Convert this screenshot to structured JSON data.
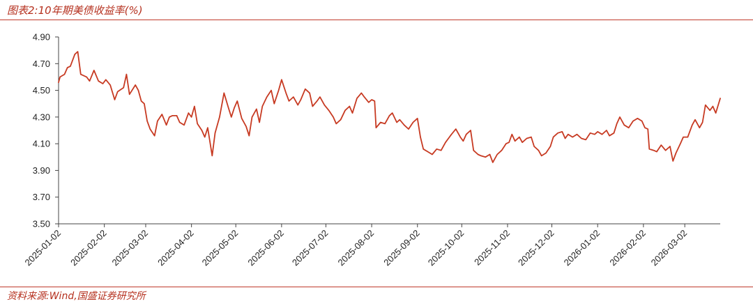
{
  "title": "图表2:10年期美债收益率(%)",
  "source": "资料来源:Wind,国盛证券研究所",
  "colors": {
    "line": "#c73a22",
    "accent": "#b5301e",
    "axis": "#444444"
  },
  "chart_data": {
    "type": "line",
    "title": "图表2:10年期美债收益率(%)",
    "xlabel": "",
    "ylabel": "",
    "ylim": [
      3.5,
      4.9
    ],
    "yticks": [
      "4.90",
      "4.70",
      "4.50",
      "4.30",
      "4.10",
      "3.90",
      "3.70",
      "3.50"
    ],
    "xticks": [
      "2025-01-02",
      "2025-02-02",
      "2025-03-02",
      "2025-04-02",
      "2025-05-02",
      "2025-06-02",
      "2025-07-02",
      "2025-08-02",
      "2025-09-02",
      "2025-10-02",
      "2025-11-02",
      "2025-12-02",
      "2026-01-02",
      "2026-02-02",
      "2026-03-02"
    ],
    "grid": false,
    "legend": "none",
    "series": [
      {
        "points": [
          [
            "2025-01-02",
            4.56
          ],
          [
            "2025-01-03",
            4.6
          ],
          [
            "2025-01-06",
            4.62
          ],
          [
            "2025-01-08",
            4.67
          ],
          [
            "2025-01-10",
            4.68
          ],
          [
            "2025-01-13",
            4.77
          ],
          [
            "2025-01-15",
            4.79
          ],
          [
            "2025-01-17",
            4.62
          ],
          [
            "2025-01-21",
            4.6
          ],
          [
            "2025-01-23",
            4.57
          ],
          [
            "2025-01-26",
            4.65
          ],
          [
            "2025-01-29",
            4.57
          ],
          [
            "2025-02-01",
            4.55
          ],
          [
            "2025-02-03",
            4.58
          ],
          [
            "2025-02-06",
            4.54
          ],
          [
            "2025-02-09",
            4.43
          ],
          [
            "2025-02-11",
            4.49
          ],
          [
            "2025-02-15",
            4.52
          ],
          [
            "2025-02-17",
            4.62
          ],
          [
            "2025-02-19",
            4.47
          ],
          [
            "2025-02-23",
            4.54
          ],
          [
            "2025-02-25",
            4.5
          ],
          [
            "2025-02-27",
            4.42
          ],
          [
            "2025-03-01",
            4.4
          ],
          [
            "2025-03-03",
            4.27
          ],
          [
            "2025-03-05",
            4.21
          ],
          [
            "2025-03-08",
            4.16
          ],
          [
            "2025-03-10",
            4.27
          ],
          [
            "2025-03-13",
            4.32
          ],
          [
            "2025-03-16",
            4.24
          ],
          [
            "2025-03-18",
            4.3
          ],
          [
            "2025-03-20",
            4.31
          ],
          [
            "2025-03-23",
            4.31
          ],
          [
            "2025-03-25",
            4.26
          ],
          [
            "2025-03-28",
            4.24
          ],
          [
            "2025-03-31",
            4.33
          ],
          [
            "2025-04-02",
            4.3
          ],
          [
            "2025-04-04",
            4.38
          ],
          [
            "2025-04-06",
            4.25
          ],
          [
            "2025-04-09",
            4.2
          ],
          [
            "2025-04-11",
            4.15
          ],
          [
            "2025-04-13",
            4.22
          ],
          [
            "2025-04-16",
            4.01
          ],
          [
            "2025-04-18",
            4.18
          ],
          [
            "2025-04-21",
            4.3
          ],
          [
            "2025-04-24",
            4.48
          ],
          [
            "2025-04-27",
            4.37
          ],
          [
            "2025-04-29",
            4.3
          ],
          [
            "2025-05-01",
            4.37
          ],
          [
            "2025-05-03",
            4.42
          ],
          [
            "2025-05-06",
            4.29
          ],
          [
            "2025-05-09",
            4.23
          ],
          [
            "2025-05-11",
            4.16
          ],
          [
            "2025-05-13",
            4.3
          ],
          [
            "2025-05-16",
            4.36
          ],
          [
            "2025-05-18",
            4.26
          ],
          [
            "2025-05-20",
            4.38
          ],
          [
            "2025-05-23",
            4.45
          ],
          [
            "2025-05-26",
            4.5
          ],
          [
            "2025-05-28",
            4.4
          ],
          [
            "2025-05-31",
            4.5
          ],
          [
            "2025-06-02",
            4.58
          ],
          [
            "2025-06-05",
            4.48
          ],
          [
            "2025-06-07",
            4.42
          ],
          [
            "2025-06-10",
            4.45
          ],
          [
            "2025-06-13",
            4.39
          ],
          [
            "2025-06-15",
            4.43
          ],
          [
            "2025-06-18",
            4.51
          ],
          [
            "2025-06-21",
            4.48
          ],
          [
            "2025-06-23",
            4.38
          ],
          [
            "2025-06-26",
            4.42
          ],
          [
            "2025-06-28",
            4.45
          ],
          [
            "2025-07-01",
            4.39
          ],
          [
            "2025-07-04",
            4.35
          ],
          [
            "2025-07-07",
            4.3
          ],
          [
            "2025-07-09",
            4.25
          ],
          [
            "2025-07-12",
            4.28
          ],
          [
            "2025-07-15",
            4.35
          ],
          [
            "2025-07-18",
            4.38
          ],
          [
            "2025-07-20",
            4.33
          ],
          [
            "2025-07-23",
            4.44
          ],
          [
            "2025-07-26",
            4.48
          ],
          [
            "2025-07-28",
            4.45
          ],
          [
            "2025-07-31",
            4.41
          ],
          [
            "2025-08-02",
            4.43
          ],
          [
            "2025-08-04",
            4.42
          ],
          [
            "2025-08-05",
            4.22
          ],
          [
            "2025-08-08",
            4.26
          ],
          [
            "2025-08-11",
            4.25
          ],
          [
            "2025-08-14",
            4.31
          ],
          [
            "2025-08-16",
            4.33
          ],
          [
            "2025-08-19",
            4.26
          ],
          [
            "2025-08-21",
            4.28
          ],
          [
            "2025-08-24",
            4.24
          ],
          [
            "2025-08-27",
            4.21
          ],
          [
            "2025-08-30",
            4.26
          ],
          [
            "2025-09-02",
            4.29
          ],
          [
            "2025-09-04",
            4.15
          ],
          [
            "2025-09-06",
            4.06
          ],
          [
            "2025-09-09",
            4.04
          ],
          [
            "2025-09-12",
            4.02
          ],
          [
            "2025-09-15",
            4.06
          ],
          [
            "2025-09-18",
            4.05
          ],
          [
            "2025-09-21",
            4.11
          ],
          [
            "2025-09-23",
            4.14
          ],
          [
            "2025-09-25",
            4.17
          ],
          [
            "2025-09-28",
            4.21
          ],
          [
            "2025-10-01",
            4.15
          ],
          [
            "2025-10-03",
            4.12
          ],
          [
            "2025-10-05",
            4.17
          ],
          [
            "2025-10-08",
            4.2
          ],
          [
            "2025-10-10",
            4.05
          ],
          [
            "2025-10-13",
            4.02
          ],
          [
            "2025-10-15",
            4.01
          ],
          [
            "2025-10-18",
            4.0
          ],
          [
            "2025-10-21",
            4.02
          ],
          [
            "2025-10-23",
            3.96
          ],
          [
            "2025-10-26",
            4.02
          ],
          [
            "2025-10-29",
            4.05
          ],
          [
            "2025-11-01",
            4.1
          ],
          [
            "2025-11-03",
            4.11
          ],
          [
            "2025-11-05",
            4.17
          ],
          [
            "2025-11-07",
            4.12
          ],
          [
            "2025-11-10",
            4.15
          ],
          [
            "2025-11-12",
            4.11
          ],
          [
            "2025-11-15",
            4.14
          ],
          [
            "2025-11-18",
            4.15
          ],
          [
            "2025-11-20",
            4.08
          ],
          [
            "2025-11-23",
            4.05
          ],
          [
            "2025-11-25",
            4.01
          ],
          [
            "2025-11-28",
            4.03
          ],
          [
            "2025-12-01",
            4.08
          ],
          [
            "2025-12-03",
            4.15
          ],
          [
            "2025-12-06",
            4.18
          ],
          [
            "2025-12-09",
            4.19
          ],
          [
            "2025-12-11",
            4.14
          ],
          [
            "2025-12-13",
            4.17
          ],
          [
            "2025-12-16",
            4.15
          ],
          [
            "2025-12-19",
            4.17
          ],
          [
            "2025-12-22",
            4.14
          ],
          [
            "2025-12-25",
            4.13
          ],
          [
            "2025-12-28",
            4.18
          ],
          [
            "2025-12-31",
            4.17
          ],
          [
            "2026-01-02",
            4.19
          ],
          [
            "2026-01-05",
            4.17
          ],
          [
            "2026-01-08",
            4.2
          ],
          [
            "2026-01-10",
            4.16
          ],
          [
            "2026-01-13",
            4.18
          ],
          [
            "2026-01-15",
            4.25
          ],
          [
            "2026-01-17",
            4.3
          ],
          [
            "2026-01-20",
            4.24
          ],
          [
            "2026-01-23",
            4.22
          ],
          [
            "2026-01-26",
            4.27
          ],
          [
            "2026-01-29",
            4.29
          ],
          [
            "2026-02-01",
            4.27
          ],
          [
            "2026-02-03",
            4.22
          ],
          [
            "2026-02-05",
            4.21
          ],
          [
            "2026-02-06",
            4.06
          ],
          [
            "2026-02-09",
            4.05
          ],
          [
            "2026-02-11",
            4.04
          ],
          [
            "2026-02-14",
            4.09
          ],
          [
            "2026-02-17",
            4.05
          ],
          [
            "2026-02-20",
            4.08
          ],
          [
            "2026-02-22",
            3.97
          ],
          [
            "2026-02-24",
            4.03
          ],
          [
            "2026-02-27",
            4.1
          ],
          [
            "2026-03-01",
            4.15
          ],
          [
            "2026-03-04",
            4.15
          ],
          [
            "2026-03-07",
            4.24
          ],
          [
            "2026-03-09",
            4.28
          ],
          [
            "2026-03-12",
            4.22
          ],
          [
            "2026-03-14",
            4.26
          ],
          [
            "2026-03-16",
            4.39
          ],
          [
            "2026-03-19",
            4.35
          ],
          [
            "2026-03-21",
            4.38
          ],
          [
            "2026-03-23",
            4.33
          ],
          [
            "2026-03-26",
            4.44
          ]
        ]
      }
    ]
  }
}
